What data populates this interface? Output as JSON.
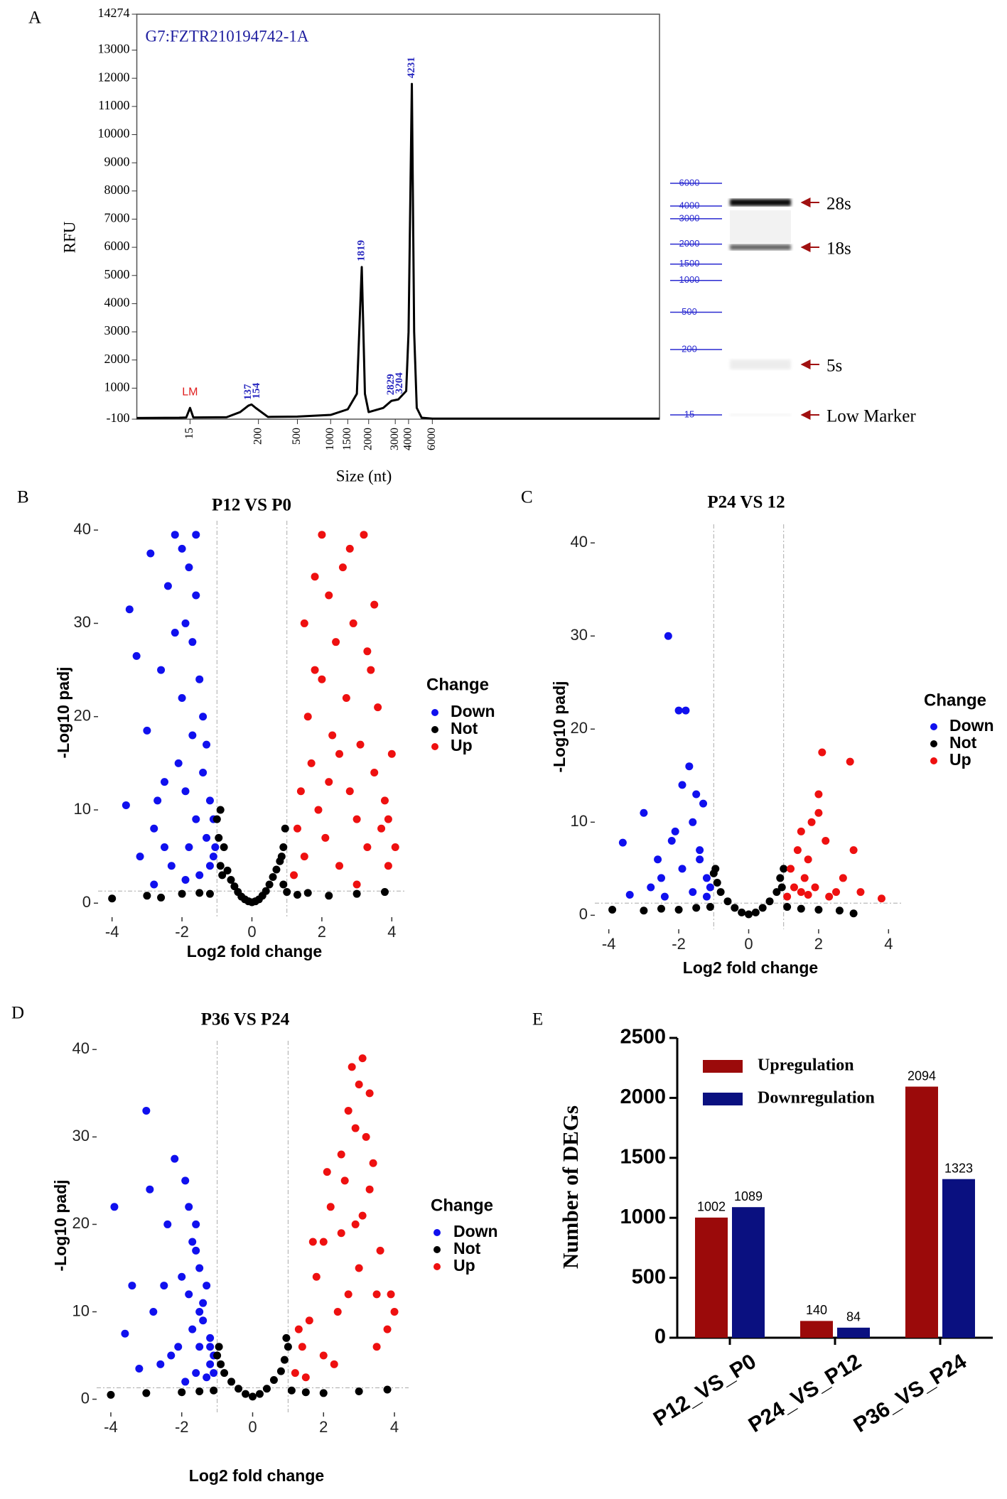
{
  "chart_data": [
    {
      "type": "line",
      "panel": "A",
      "title": "G7:FZTR210194742-1A",
      "xlabel": "Size (nt)",
      "ylabel": "RFU",
      "color": "#000000",
      "xlim": [
        2,
        290000
      ],
      "xticks": [
        15,
        200,
        500,
        1000,
        1500,
        2000,
        3000,
        4000,
        6000
      ],
      "ylim": [
        -100,
        14274
      ],
      "yticks": [
        -100,
        1000,
        2000,
        3000,
        4000,
        5000,
        6000,
        7000,
        8000,
        9000,
        10000,
        11000,
        12000,
        13000,
        14274
      ],
      "x": [
        2,
        10,
        13,
        15,
        17,
        60,
        100,
        137,
        154,
        180,
        250,
        500,
        1000,
        1500,
        1700,
        1819,
        1900,
        2000,
        2500,
        2829,
        3204,
        3800,
        4000,
        4231,
        4400,
        4600,
        5000,
        6000,
        290000
      ],
      "values": [
        -60,
        -50,
        -40,
        300,
        -40,
        -30,
        150,
        380,
        420,
        300,
        -20,
        -10,
        50,
        250,
        800,
        5300,
        800,
        150,
        300,
        550,
        600,
        900,
        3000,
        11800,
        3000,
        300,
        -50,
        -80,
        -80
      ],
      "peaks": [
        137,
        154,
        1819,
        2829,
        3204,
        4231
      ],
      "marker": {
        "label": "LM",
        "x": 15
      },
      "ladder": [
        6000,
        4000,
        3000,
        2000,
        1500,
        1000,
        500,
        200,
        15
      ],
      "bands": [
        "28s",
        "18s",
        "5s",
        "Low Marker"
      ]
    },
    {
      "type": "scatter",
      "panel": "B",
      "title": "P12 VS P0",
      "xlabel": "Log2 fold change",
      "ylabel": "-Log10 padj",
      "legend_title": "Change",
      "xlim": [
        -4.4,
        4.4
      ],
      "xticks": [
        -4,
        -2,
        0,
        2,
        4
      ],
      "ylim": [
        -1.5,
        41
      ],
      "yticks": [
        0,
        10,
        20,
        30,
        40
      ],
      "thresholds": {
        "x": [
          -1,
          1
        ],
        "y": 1.3
      },
      "series": [
        {
          "name": "Down",
          "color": "#1010ee",
          "x": [
            -3.5,
            -3.3,
            -3.6,
            -3.0,
            -2.9,
            -2.8,
            -2.7,
            -2.6,
            -2.5,
            -2.4,
            -2.3,
            -2.2,
            -2.1,
            -2.0,
            -2.0,
            -1.9,
            -1.9,
            -1.8,
            -1.8,
            -1.7,
            -1.7,
            -1.6,
            -1.6,
            -1.5,
            -1.5,
            -1.4,
            -1.4,
            -1.3,
            -1.3,
            -1.2,
            -1.2,
            -1.1,
            -1.1,
            -1.05,
            -2.2,
            -2.5,
            -1.9,
            -1.6,
            -2.8,
            -3.2
          ],
          "values": [
            31.5,
            26.5,
            10.5,
            18.5,
            37.5,
            8,
            11,
            25,
            6,
            34,
            4,
            39.5,
            15,
            38,
            22,
            30,
            12,
            36,
            6,
            28,
            18,
            33,
            9,
            24,
            3,
            20,
            14,
            17,
            7,
            11,
            4,
            9,
            5,
            6,
            29,
            13,
            2.5,
            39.5,
            2,
            5
          ]
        },
        {
          "name": "Not",
          "color": "#000000",
          "x": [
            -4,
            -3,
            -2,
            -1.5,
            -1.2,
            -1.0,
            -0.9,
            -0.9,
            -0.8,
            -0.7,
            -0.6,
            -0.5,
            -0.4,
            -0.3,
            -0.2,
            -0.1,
            0,
            0.1,
            0.2,
            0.3,
            0.4,
            0.5,
            0.6,
            0.7,
            0.8,
            0.9,
            0.9,
            1.0,
            1.3,
            1.6,
            2.2,
            3,
            3.8,
            -2.6,
            -0.95,
            0.95,
            -0.85,
            0.85
          ],
          "values": [
            0.5,
            0.8,
            1,
            1.1,
            1.0,
            9,
            10,
            4,
            6,
            3.5,
            2.5,
            1.8,
            1.2,
            0.7,
            0.4,
            0.2,
            0.1,
            0.2,
            0.4,
            0.8,
            1.3,
            2,
            2.8,
            3.6,
            4.5,
            6,
            2,
            1.2,
            0.9,
            1.1,
            0.8,
            1,
            1.2,
            0.6,
            7,
            8,
            3,
            5
          ]
        },
        {
          "name": "Up",
          "color": "#ee1010",
          "x": [
            1.2,
            1.3,
            1.4,
            1.5,
            1.6,
            1.7,
            1.8,
            1.9,
            2.0,
            2.1,
            2.2,
            2.3,
            2.4,
            2.5,
            2.6,
            2.7,
            2.8,
            2.9,
            3.0,
            3.1,
            3.2,
            3.3,
            3.4,
            3.5,
            3.6,
            3.7,
            3.8,
            3.9,
            4.0,
            4.1,
            1.5,
            2.0,
            2.5,
            3.0,
            3.5,
            1.8,
            2.2,
            2.8,
            3.3,
            3.9
          ],
          "values": [
            3,
            8,
            12,
            5,
            20,
            15,
            25,
            10,
            39.5,
            7,
            33,
            18,
            28,
            4,
            36,
            22,
            12,
            30,
            9,
            17,
            39.5,
            6,
            25,
            14,
            21,
            8,
            11,
            4,
            16,
            6,
            30,
            24,
            16,
            2,
            32,
            35,
            13,
            38,
            27,
            9
          ]
        }
      ]
    },
    {
      "type": "scatter",
      "panel": "C",
      "title": "P24 VS 12",
      "xlabel": "Log2 fold change",
      "ylabel": "-Log10 padj",
      "legend_title": "Change",
      "xlim": [
        -4.4,
        4.4
      ],
      "xticks": [
        -4,
        -2,
        0,
        2,
        4
      ],
      "ylim": [
        -1.5,
        42
      ],
      "yticks": [
        0,
        10,
        20,
        30,
        40
      ],
      "thresholds": {
        "x": [
          -1,
          1
        ],
        "y": 1.3
      },
      "series": [
        {
          "name": "Down",
          "color": "#1010ee",
          "x": [
            -3.6,
            -3.4,
            -3.0,
            -2.8,
            -2.6,
            -2.4,
            -2.3,
            -2.2,
            -2.0,
            -1.9,
            -1.8,
            -1.7,
            -1.6,
            -1.5,
            -1.4,
            -1.3,
            -1.2,
            -1.1,
            -2.1,
            -1.6,
            -1.4,
            -1.9,
            -2.5,
            -1.2
          ],
          "values": [
            7.8,
            2.2,
            11,
            3,
            6,
            2,
            30,
            8,
            22,
            5,
            22,
            16,
            10,
            13,
            7,
            12,
            4,
            3,
            9,
            2.5,
            6,
            14,
            4,
            2
          ]
        },
        {
          "name": "Not",
          "color": "#000000",
          "x": [
            -3.9,
            -3,
            -2.5,
            -2,
            -1.5,
            -1.1,
            -1,
            -0.9,
            -0.8,
            -0.6,
            -0.4,
            -0.2,
            0,
            0.2,
            0.4,
            0.6,
            0.8,
            0.9,
            1,
            1.1,
            1.5,
            2,
            2.6,
            3,
            0.95,
            -0.95
          ],
          "values": [
            0.6,
            0.5,
            0.7,
            0.6,
            0.8,
            0.9,
            4.5,
            3.5,
            2.5,
            1.5,
            0.8,
            0.3,
            0.1,
            0.3,
            0.8,
            1.5,
            2.5,
            4,
            5,
            0.9,
            0.7,
            0.6,
            0.5,
            0.2,
            3,
            5
          ]
        },
        {
          "name": "Up",
          "color": "#ee1010",
          "x": [
            1.1,
            1.2,
            1.3,
            1.4,
            1.5,
            1.6,
            1.7,
            1.8,
            1.9,
            2.0,
            2.1,
            2.2,
            2.3,
            2.5,
            2.7,
            2.9,
            3.0,
            3.2,
            3.8,
            1.5,
            2.0,
            1.7
          ],
          "values": [
            2,
            5,
            3,
            7,
            2.5,
            4,
            6,
            10,
            3,
            13,
            17.5,
            8,
            2,
            2.5,
            4,
            16.5,
            7,
            2.5,
            1.8,
            9,
            11,
            2.2
          ]
        }
      ]
    },
    {
      "type": "scatter",
      "panel": "D",
      "title": "P36 VS P24",
      "xlabel": "Log2 fold change",
      "ylabel": "-Log10 padj",
      "legend_title": "Change",
      "xlim": [
        -4.4,
        4.4
      ],
      "xticks": [
        -4,
        -2,
        0,
        2,
        4
      ],
      "ylim": [
        -1.5,
        41
      ],
      "yticks": [
        0,
        10,
        20,
        30,
        40
      ],
      "thresholds": {
        "x": [
          -1,
          1
        ],
        "y": 1.3
      },
      "series": [
        {
          "name": "Down",
          "color": "#1010ee",
          "x": [
            -3.9,
            -3.6,
            -3.2,
            -3.0,
            -2.9,
            -2.8,
            -2.6,
            -2.4,
            -2.2,
            -2.1,
            -2.0,
            -1.9,
            -1.8,
            -1.8,
            -1.7,
            -1.7,
            -1.6,
            -1.6,
            -1.5,
            -1.5,
            -1.4,
            -1.4,
            -1.3,
            -1.3,
            -1.2,
            -1.2,
            -1.1,
            -1.1,
            -2.5,
            -1.9,
            -1.6,
            -3.4,
            -2.3,
            -1.5,
            -1.2
          ],
          "values": [
            22,
            7.5,
            3.5,
            33,
            24,
            10,
            4,
            20,
            27.5,
            6,
            14,
            25,
            12,
            22,
            18,
            8,
            17,
            3,
            15,
            6,
            11,
            9,
            13,
            2.5,
            7,
            4,
            5,
            3,
            13,
            2,
            20,
            13,
            5,
            10,
            6
          ]
        },
        {
          "name": "Not",
          "color": "#000000",
          "x": [
            -4,
            -3,
            -2,
            -1.5,
            -1.1,
            -1,
            -0.9,
            -0.8,
            -0.6,
            -0.4,
            -0.2,
            0,
            0.2,
            0.4,
            0.6,
            0.8,
            0.9,
            1,
            1.1,
            1.5,
            2,
            3,
            3.8,
            -0.95,
            0.95
          ],
          "values": [
            0.5,
            0.7,
            0.8,
            0.9,
            1,
            5,
            4,
            3,
            2,
            1.2,
            0.6,
            0.3,
            0.6,
            1.2,
            2.2,
            3.2,
            4.5,
            6,
            1,
            0.8,
            0.7,
            0.9,
            1.1,
            6,
            7
          ]
        },
        {
          "name": "Up",
          "color": "#ee1010",
          "x": [
            1.2,
            1.4,
            1.6,
            1.8,
            2.0,
            2.2,
            2.4,
            2.5,
            2.6,
            2.7,
            2.8,
            2.9,
            3.0,
            3.0,
            3.1,
            3.2,
            3.3,
            3.4,
            3.5,
            3.6,
            3.8,
            4.0,
            1.5,
            2.0,
            2.3,
            2.7,
            3.1,
            3.5,
            1.3,
            2.1,
            2.9,
            3.3,
            3.9,
            1.7,
            2.5
          ],
          "values": [
            3,
            6,
            9,
            14,
            18,
            22,
            10,
            28,
            25,
            33,
            38,
            20,
            36,
            15,
            39,
            30,
            24,
            27,
            12,
            17,
            8,
            10,
            2.5,
            5,
            4,
            12,
            21,
            6,
            8,
            26,
            31,
            35,
            12,
            18,
            19
          ]
        }
      ]
    },
    {
      "type": "bar",
      "panel": "E",
      "ylabel": "Number of DEGs",
      "categories": [
        "P12_VS_P0",
        "P24_VS_P12",
        "P36_VS_P24"
      ],
      "ylim": [
        0,
        2500
      ],
      "yticks": [
        0,
        500,
        1000,
        1500,
        2000,
        2500
      ],
      "series": [
        {
          "name": "Upregulation",
          "color": "#9b0a0a",
          "values": [
            1002,
            140,
            2094
          ]
        },
        {
          "name": "Downregulation",
          "color": "#0a1080",
          "values": [
            1089,
            84,
            1323
          ]
        }
      ]
    }
  ]
}
